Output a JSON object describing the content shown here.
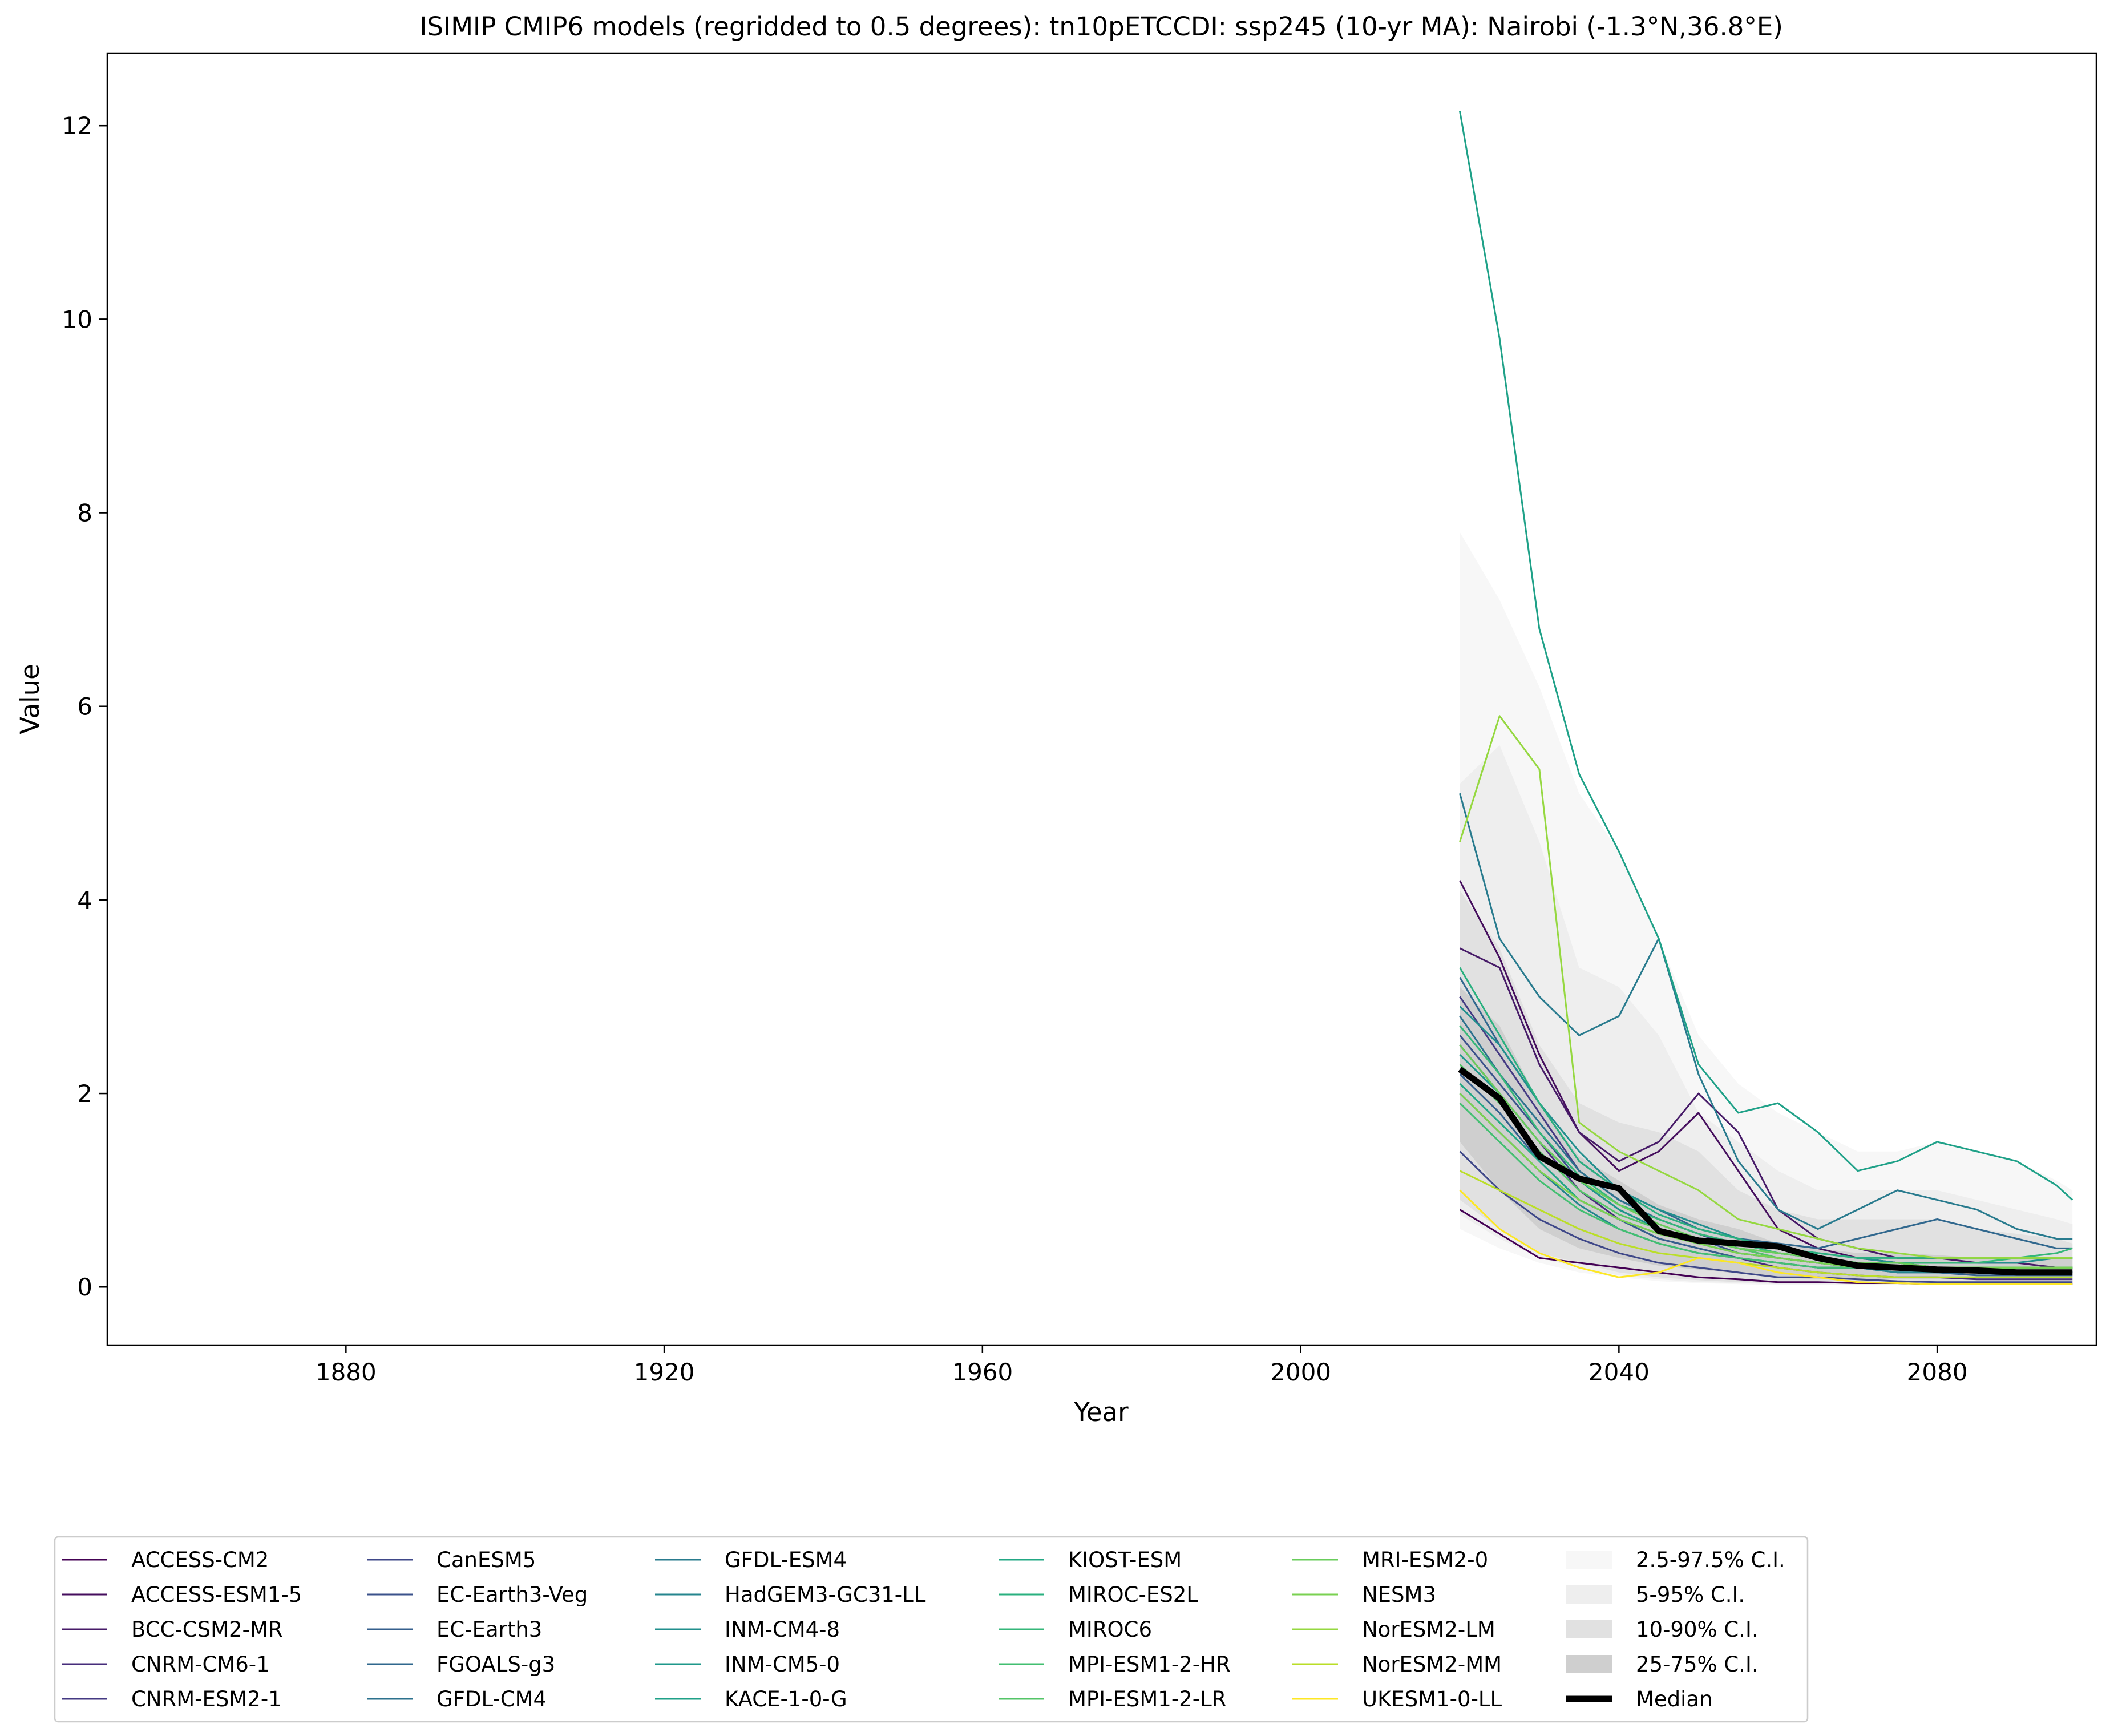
{
  "chart_data": {
    "type": "line",
    "title": "ISIMIP CMIP6 models (regridded to 0.5 degrees): tn10pETCCDI: ssp245 (10-yr MA): Nairobi (-1.3°N,36.8°E)",
    "xlabel": "Year",
    "ylabel": "Value",
    "xlim": [
      1850,
      2100
    ],
    "ylim": [
      -0.6,
      12.75
    ],
    "x_ticks": [
      1880,
      1920,
      1960,
      2000,
      2040,
      2080
    ],
    "y_ticks": [
      0,
      2,
      4,
      6,
      8,
      10,
      12
    ],
    "grid": false,
    "legend_placement": "bottom",
    "x": [
      2020,
      2025,
      2030,
      2035,
      2040,
      2045,
      2050,
      2055,
      2060,
      2065,
      2070,
      2075,
      2080,
      2085,
      2090,
      2095,
      2097
    ],
    "series": [
      {
        "name": "ACCESS-CM2",
        "color": "#440154",
        "values": [
          0.8,
          0.55,
          0.3,
          0.25,
          0.2,
          0.15,
          0.1,
          0.08,
          0.05,
          0.05,
          0.04,
          0.04,
          0.03,
          0.03,
          0.03,
          0.03,
          0.03
        ]
      },
      {
        "name": "ACCESS-ESM1-5",
        "color": "#450e5d",
        "values": [
          4.2,
          3.4,
          2.4,
          1.6,
          1.2,
          1.4,
          1.8,
          1.2,
          0.6,
          0.4,
          0.3,
          0.25,
          0.2,
          0.2,
          0.2,
          0.2,
          0.2
        ]
      },
      {
        "name": "BCC-CSM2-MR",
        "color": "#471b68",
        "values": [
          3.5,
          3.3,
          2.3,
          1.6,
          1.3,
          1.5,
          2.0,
          1.6,
          0.8,
          0.5,
          0.4,
          0.3,
          0.3,
          0.25,
          0.25,
          0.2,
          0.2
        ]
      },
      {
        "name": "CNRM-CM6-1",
        "color": "#472d7b",
        "values": [
          2.5,
          2.0,
          1.5,
          1.0,
          0.7,
          0.5,
          0.4,
          0.3,
          0.2,
          0.15,
          0.12,
          0.1,
          0.1,
          0.08,
          0.08,
          0.08,
          0.08
        ]
      },
      {
        "name": "CNRM-ESM2-1",
        "color": "#443a83",
        "values": [
          3.0,
          2.4,
          1.8,
          1.2,
          0.9,
          0.7,
          0.55,
          0.4,
          0.3,
          0.25,
          0.2,
          0.2,
          0.15,
          0.15,
          0.15,
          0.15,
          0.15
        ]
      },
      {
        "name": "CanESM5",
        "color": "#3f4889",
        "values": [
          1.4,
          1.0,
          0.7,
          0.5,
          0.35,
          0.25,
          0.2,
          0.15,
          0.1,
          0.1,
          0.08,
          0.06,
          0.05,
          0.05,
          0.05,
          0.05,
          0.05
        ]
      },
      {
        "name": "EC-Earth3-Veg",
        "color": "#3b528b",
        "values": [
          2.6,
          2.1,
          1.6,
          1.1,
          0.8,
          0.6,
          0.5,
          0.35,
          0.3,
          0.25,
          0.2,
          0.18,
          0.15,
          0.15,
          0.15,
          0.15,
          0.15
        ]
      },
      {
        "name": "EC-Earth3",
        "color": "#355f8d",
        "values": [
          2.2,
          1.8,
          1.3,
          0.9,
          0.7,
          0.5,
          0.4,
          0.3,
          0.25,
          0.2,
          0.2,
          0.15,
          0.15,
          0.12,
          0.12,
          0.12,
          0.12
        ]
      },
      {
        "name": "FGOALS-g3",
        "color": "#31688e",
        "values": [
          3.2,
          2.5,
          1.9,
          1.3,
          1.0,
          0.8,
          0.6,
          0.5,
          0.45,
          0.4,
          0.5,
          0.6,
          0.7,
          0.6,
          0.5,
          0.4,
          0.4
        ]
      },
      {
        "name": "GFDL-CM4",
        "color": "#2c728e",
        "values": [
          2.8,
          2.2,
          1.7,
          1.2,
          0.9,
          0.7,
          0.55,
          0.45,
          0.35,
          0.3,
          0.25,
          0.2,
          0.2,
          0.2,
          0.2,
          0.2,
          0.2
        ]
      },
      {
        "name": "GFDL-ESM4",
        "color": "#297b8e",
        "values": [
          5.1,
          3.6,
          3.0,
          2.6,
          2.8,
          3.6,
          2.2,
          1.3,
          0.8,
          0.6,
          0.8,
          1.0,
          0.9,
          0.8,
          0.6,
          0.5,
          0.5
        ]
      },
      {
        "name": "HadGEM3-GC31-LL",
        "color": "#25858e",
        "values": [
          2.0,
          1.6,
          1.2,
          0.85,
          0.6,
          0.45,
          0.35,
          0.3,
          0.25,
          0.2,
          0.2,
          0.15,
          0.15,
          0.15,
          0.15,
          0.15,
          0.15
        ]
      },
      {
        "name": "INM-CM4-8",
        "color": "#218f8d",
        "values": [
          2.9,
          2.5,
          1.9,
          1.4,
          1.0,
          0.8,
          0.65,
          0.5,
          0.4,
          0.35,
          0.3,
          0.25,
          0.25,
          0.25,
          0.25,
          0.3,
          0.3
        ]
      },
      {
        "name": "INM-CM5-0",
        "color": "#1f988b",
        "values": [
          2.4,
          2.0,
          1.5,
          1.1,
          0.8,
          0.6,
          0.5,
          0.4,
          0.35,
          0.3,
          0.25,
          0.2,
          0.2,
          0.2,
          0.2,
          0.2,
          0.2
        ]
      },
      {
        "name": "KACE-1-0-G",
        "color": "#1fa188",
        "values": [
          12.15,
          9.8,
          6.8,
          5.3,
          4.5,
          3.6,
          2.3,
          1.8,
          1.9,
          1.6,
          1.2,
          1.3,
          1.5,
          1.4,
          1.3,
          1.05,
          0.9
        ]
      },
      {
        "name": "KIOST-ESM",
        "color": "#22a884",
        "values": [
          2.1,
          1.7,
          1.3,
          0.9,
          0.7,
          0.55,
          0.45,
          0.35,
          0.3,
          0.25,
          0.2,
          0.2,
          0.2,
          0.2,
          0.2,
          0.2,
          0.2
        ]
      },
      {
        "name": "MIROC-ES2L",
        "color": "#2ab07f",
        "values": [
          3.3,
          2.6,
          1.9,
          1.3,
          1.0,
          0.75,
          0.6,
          0.5,
          0.4,
          0.35,
          0.3,
          0.3,
          0.3,
          0.3,
          0.3,
          0.3,
          0.3
        ]
      },
      {
        "name": "MIROC6",
        "color": "#35b779",
        "values": [
          2.7,
          2.2,
          1.6,
          1.15,
          0.85,
          0.7,
          0.55,
          0.45,
          0.35,
          0.3,
          0.25,
          0.25,
          0.25,
          0.25,
          0.3,
          0.35,
          0.4
        ]
      },
      {
        "name": "MPI-ESM1-2-HR",
        "color": "#43bf71",
        "values": [
          1.9,
          1.5,
          1.1,
          0.8,
          0.6,
          0.45,
          0.35,
          0.3,
          0.25,
          0.2,
          0.2,
          0.2,
          0.2,
          0.2,
          0.2,
          0.2,
          0.2
        ]
      },
      {
        "name": "MPI-ESM1-2-LR",
        "color": "#54c568",
        "values": [
          2.3,
          1.9,
          1.4,
          1.0,
          0.75,
          0.6,
          0.5,
          0.4,
          0.3,
          0.25,
          0.2,
          0.2,
          0.2,
          0.2,
          0.2,
          0.2,
          0.2
        ]
      },
      {
        "name": "MRI-ESM2-0",
        "color": "#69cd5b",
        "values": [
          2.5,
          2.0,
          1.5,
          1.1,
          0.85,
          0.65,
          0.5,
          0.4,
          0.35,
          0.3,
          0.25,
          0.25,
          0.2,
          0.2,
          0.2,
          0.2,
          0.2
        ]
      },
      {
        "name": "NESM3",
        "color": "#7ad151",
        "values": [
          2.0,
          1.6,
          1.2,
          0.9,
          0.7,
          0.55,
          0.45,
          0.35,
          0.3,
          0.25,
          0.2,
          0.2,
          0.2,
          0.2,
          0.2,
          0.2,
          0.2
        ]
      },
      {
        "name": "NorESM2-LM",
        "color": "#95d840",
        "values": [
          4.6,
          5.9,
          5.35,
          1.7,
          1.4,
          1.2,
          1.0,
          0.7,
          0.6,
          0.5,
          0.4,
          0.35,
          0.3,
          0.3,
          0.3,
          0.3,
          0.3
        ]
      },
      {
        "name": "NorESM2-MM",
        "color": "#bade28",
        "values": [
          1.2,
          1.0,
          0.8,
          0.6,
          0.45,
          0.35,
          0.3,
          0.25,
          0.2,
          0.15,
          0.12,
          0.1,
          0.1,
          0.1,
          0.1,
          0.1,
          0.1
        ]
      },
      {
        "name": "UKESM1-0-LL",
        "color": "#fde725",
        "values": [
          1.0,
          0.6,
          0.35,
          0.2,
          0.1,
          0.15,
          0.3,
          0.25,
          0.15,
          0.1,
          0.05,
          0.04,
          0.03,
          0.03,
          0.03,
          0.03,
          0.03
        ]
      }
    ],
    "bands": [
      {
        "name": "2.5-97.5% C.I.",
        "color": "#f7f7f7",
        "lower": [
          0.6,
          0.4,
          0.25,
          0.15,
          0.1,
          0.06,
          0.04,
          0.03,
          0.02,
          0.02,
          0.02,
          0.02,
          0.02,
          0.02,
          0.02,
          0.02,
          0.02
        ],
        "upper": [
          7.8,
          7.1,
          6.2,
          5.1,
          4.5,
          3.6,
          2.6,
          2.1,
          1.8,
          1.6,
          1.4,
          1.4,
          1.5,
          1.4,
          1.3,
          1.1,
          1.0
        ]
      },
      {
        "name": "5-95% C.I.",
        "color": "#eeeeee",
        "lower": [
          0.75,
          0.5,
          0.3,
          0.2,
          0.12,
          0.08,
          0.05,
          0.04,
          0.03,
          0.03,
          0.03,
          0.03,
          0.03,
          0.03,
          0.03,
          0.03,
          0.03
        ],
        "upper": [
          5.2,
          5.6,
          4.6,
          3.3,
          3.1,
          2.6,
          1.8,
          1.5,
          1.2,
          1.0,
          1.0,
          1.0,
          1.0,
          0.9,
          0.8,
          0.7,
          0.65
        ]
      },
      {
        "name": "10-90% C.I.",
        "color": "#e1e1e1",
        "lower": [
          0.9,
          0.6,
          0.35,
          0.25,
          0.15,
          0.1,
          0.07,
          0.05,
          0.04,
          0.04,
          0.04,
          0.04,
          0.04,
          0.04,
          0.04,
          0.04,
          0.04
        ],
        "upper": [
          4.1,
          3.5,
          2.5,
          1.9,
          1.7,
          1.6,
          1.4,
          1.0,
          0.8,
          0.7,
          0.7,
          0.7,
          0.7,
          0.6,
          0.55,
          0.5,
          0.45
        ]
      },
      {
        "name": "25-75% C.I.",
        "color": "#cfcfcf",
        "lower": [
          1.5,
          1.0,
          0.6,
          0.4,
          0.3,
          0.22,
          0.18,
          0.14,
          0.1,
          0.08,
          0.08,
          0.08,
          0.08,
          0.08,
          0.08,
          0.08,
          0.08
        ],
        "upper": [
          3.1,
          2.7,
          1.9,
          1.35,
          1.1,
          0.85,
          0.7,
          0.6,
          0.45,
          0.4,
          0.35,
          0.35,
          0.33,
          0.3,
          0.3,
          0.3,
          0.3
        ]
      }
    ],
    "median": {
      "name": "Median",
      "color": "#000000",
      "values": [
        2.25,
        1.95,
        1.35,
        1.12,
        1.02,
        0.58,
        0.48,
        0.45,
        0.42,
        0.3,
        0.22,
        0.2,
        0.18,
        0.17,
        0.15,
        0.15,
        0.15
      ]
    }
  }
}
